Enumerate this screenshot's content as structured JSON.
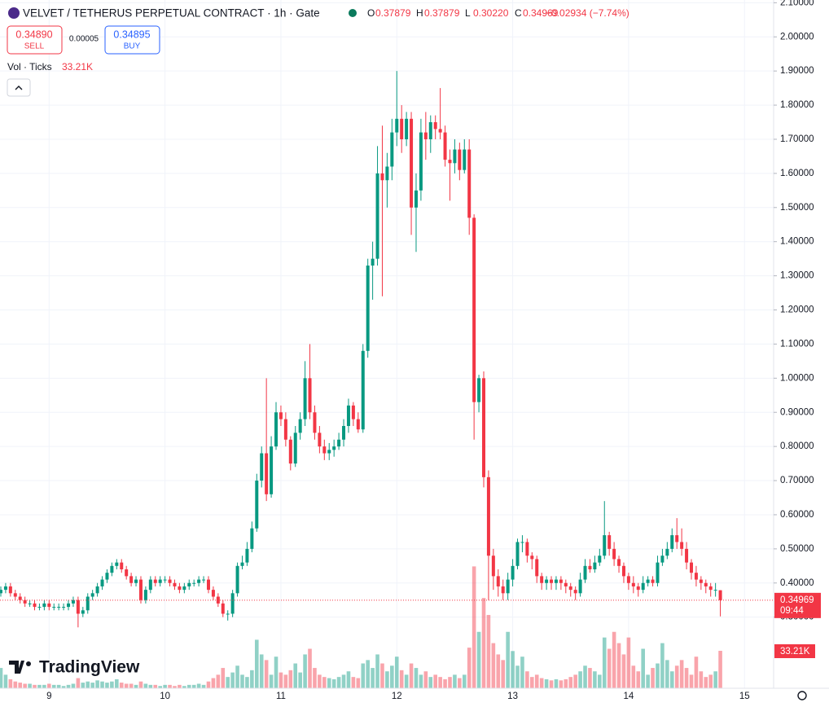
{
  "header": {
    "symbol": "VELVET / TETHERUS PERPETUAL CONTRACT · 1h · Gate",
    "ohlc": [
      [
        "O",
        "0.37879"
      ],
      [
        "H",
        "0.37879"
      ],
      [
        "L",
        "0.30220"
      ],
      [
        "C",
        "0.34969"
      ]
    ],
    "change": "−0.02934 (−7.74%)",
    "sell_price": "0.34890",
    "sell": "SELL",
    "spread": "0.00005",
    "buy_price": "0.34895",
    "buy": "BUY",
    "indicator": "Vol · Ticks",
    "indicator_value": "33.21K",
    "countdown": "09:44",
    "brand": "TradingView"
  },
  "chart_data": {
    "type": "candlestick",
    "up_color": "#089981",
    "down_color": "#f23645",
    "grid": true,
    "categories": [
      null,
      null,
      null,
      null,
      null,
      null,
      null,
      null,
      null,
      null,
      "9",
      null,
      null,
      null,
      null,
      null,
      null,
      null,
      null,
      null,
      null,
      null,
      null,
      null,
      null,
      null,
      null,
      null,
      null,
      null,
      null,
      null,
      null,
      null,
      "10",
      null,
      null,
      null,
      null,
      null,
      null,
      null,
      null,
      null,
      null,
      null,
      null,
      null,
      null,
      null,
      null,
      null,
      null,
      null,
      null,
      null,
      null,
      null,
      "11",
      null,
      null,
      null,
      null,
      null,
      null,
      null,
      null,
      null,
      null,
      null,
      null,
      null,
      null,
      null,
      null,
      null,
      null,
      null,
      null,
      null,
      null,
      null,
      "12",
      null,
      null,
      null,
      null,
      null,
      null,
      null,
      null,
      null,
      null,
      null,
      null,
      null,
      null,
      null,
      null,
      null,
      null,
      null,
      null,
      null,
      null,
      null,
      "13",
      null,
      null,
      null,
      null,
      null,
      null,
      null,
      null,
      null,
      null,
      null,
      null,
      null,
      null,
      null,
      null,
      null,
      null,
      null,
      null,
      null,
      null,
      null,
      "14",
      null,
      null,
      null,
      null,
      null,
      null,
      null,
      null,
      null,
      null,
      null,
      null,
      null,
      null,
      null,
      null,
      null,
      null,
      null,
      null,
      null,
      null,
      null,
      "15"
    ],
    "open": [
      0.37,
      0.38,
      0.39,
      0.37,
      0.36,
      0.35,
      0.34,
      0.34,
      0.33,
      0.33,
      0.34,
      0.33,
      0.33,
      0.33,
      0.33,
      0.34,
      0.35,
      0.31,
      0.32,
      0.36,
      0.37,
      0.39,
      0.41,
      0.43,
      0.45,
      0.46,
      0.44,
      0.42,
      0.4,
      0.41,
      0.35,
      0.38,
      0.41,
      0.4,
      0.41,
      0.41,
      0.4,
      0.39,
      0.38,
      0.39,
      0.4,
      0.4,
      0.41,
      0.41,
      0.38,
      0.36,
      0.34,
      0.31,
      0.31,
      0.37,
      0.45,
      0.46,
      0.5,
      0.56,
      0.7,
      0.78,
      0.66,
      0.8,
      0.9,
      0.88,
      0.82,
      0.75,
      0.84,
      0.88,
      1.0,
      0.9,
      0.84,
      0.8,
      0.78,
      0.79,
      0.8,
      0.82,
      0.86,
      0.92,
      0.88,
      0.85,
      1.08,
      1.33,
      1.35,
      1.6,
      1.58,
      1.62,
      1.72,
      1.76,
      1.7,
      1.76,
      1.5,
      1.55,
      1.72,
      1.7,
      1.75,
      1.73,
      1.72,
      1.64,
      1.63,
      1.67,
      1.61,
      1.67,
      1.47,
      0.93,
      1.0,
      0.71,
      0.48,
      0.42,
      0.39,
      0.37,
      0.41,
      0.45,
      0.52,
      0.52,
      0.48,
      0.47,
      0.42,
      0.4,
      0.41,
      0.4,
      0.41,
      0.4,
      0.39,
      0.38,
      0.37,
      0.41,
      0.45,
      0.44,
      0.46,
      0.48,
      0.54,
      0.5,
      0.47,
      0.45,
      0.42,
      0.4,
      0.39,
      0.38,
      0.4,
      0.41,
      0.4,
      0.46,
      0.48,
      0.5,
      0.54,
      0.52,
      0.5,
      0.46,
      0.43,
      0.41,
      0.4,
      0.39,
      0.38,
      0.37879,
      null,
      null,
      null,
      null,
      null
    ],
    "high": [
      0.39,
      0.4,
      0.4,
      0.38,
      0.37,
      0.36,
      0.35,
      0.35,
      0.34,
      0.35,
      0.35,
      0.34,
      0.34,
      0.34,
      0.35,
      0.36,
      0.36,
      0.33,
      0.37,
      0.38,
      0.4,
      0.42,
      0.44,
      0.46,
      0.47,
      0.47,
      0.45,
      0.43,
      0.42,
      0.42,
      0.39,
      0.42,
      0.42,
      0.42,
      0.42,
      0.42,
      0.41,
      0.4,
      0.4,
      0.41,
      0.41,
      0.42,
      0.42,
      0.42,
      0.39,
      0.37,
      0.35,
      0.32,
      0.38,
      0.46,
      0.48,
      0.52,
      0.58,
      0.72,
      0.8,
      1.0,
      0.83,
      0.93,
      0.92,
      0.9,
      0.83,
      0.86,
      0.9,
      1.05,
      1.1,
      0.92,
      0.86,
      0.82,
      0.81,
      0.82,
      0.84,
      0.88,
      0.94,
      0.93,
      0.9,
      1.1,
      1.35,
      1.4,
      1.68,
      1.74,
      1.66,
      1.76,
      1.9,
      1.8,
      1.78,
      1.78,
      1.6,
      1.76,
      1.78,
      1.77,
      1.77,
      1.85,
      1.74,
      1.67,
      1.7,
      1.69,
      1.7,
      1.7,
      1.48,
      1.01,
      1.02,
      0.73,
      0.5,
      0.44,
      0.41,
      0.43,
      0.47,
      0.53,
      0.54,
      0.53,
      0.49,
      0.48,
      0.43,
      0.42,
      0.42,
      0.42,
      0.42,
      0.41,
      0.4,
      0.39,
      0.43,
      0.47,
      0.47,
      0.48,
      0.5,
      0.64,
      0.55,
      0.52,
      0.48,
      0.46,
      0.43,
      0.42,
      0.4,
      0.42,
      0.42,
      0.42,
      0.48,
      0.5,
      0.52,
      0.56,
      0.59,
      0.56,
      0.52,
      0.47,
      0.45,
      0.42,
      0.41,
      0.4,
      0.4,
      0.37879,
      null,
      null,
      null,
      null,
      null
    ],
    "low": [
      0.36,
      0.37,
      0.36,
      0.35,
      0.34,
      0.33,
      0.33,
      0.32,
      0.32,
      0.32,
      0.32,
      0.32,
      0.32,
      0.32,
      0.32,
      0.33,
      0.27,
      0.3,
      0.31,
      0.35,
      0.36,
      0.38,
      0.4,
      0.42,
      0.44,
      0.43,
      0.41,
      0.39,
      0.39,
      0.34,
      0.34,
      0.37,
      0.39,
      0.39,
      0.4,
      0.39,
      0.38,
      0.37,
      0.37,
      0.38,
      0.39,
      0.39,
      0.4,
      0.37,
      0.35,
      0.33,
      0.3,
      0.29,
      0.3,
      0.36,
      0.44,
      0.45,
      0.49,
      0.55,
      0.68,
      0.64,
      0.65,
      0.79,
      0.86,
      0.8,
      0.73,
      0.74,
      0.82,
      0.86,
      0.88,
      0.82,
      0.78,
      0.76,
      0.76,
      0.77,
      0.79,
      0.8,
      0.84,
      0.86,
      0.84,
      0.84,
      1.06,
      1.23,
      1.33,
      1.24,
      1.5,
      1.58,
      1.68,
      1.66,
      1.68,
      1.42,
      1.37,
      1.52,
      1.64,
      1.66,
      1.7,
      1.7,
      1.62,
      1.52,
      1.6,
      1.58,
      1.6,
      1.42,
      0.82,
      0.9,
      0.68,
      0.35,
      0.38,
      0.36,
      0.35,
      0.35,
      0.39,
      0.44,
      0.49,
      0.46,
      0.44,
      0.4,
      0.38,
      0.38,
      0.38,
      0.38,
      0.38,
      0.37,
      0.36,
      0.35,
      0.36,
      0.4,
      0.43,
      0.43,
      0.45,
      0.47,
      0.48,
      0.45,
      0.43,
      0.4,
      0.38,
      0.37,
      0.36,
      0.37,
      0.39,
      0.39,
      0.39,
      0.45,
      0.47,
      0.49,
      0.5,
      0.48,
      0.44,
      0.41,
      0.39,
      0.38,
      0.37,
      0.36,
      0.36,
      0.3022,
      null,
      null,
      null,
      null,
      null
    ],
    "close": [
      0.38,
      0.39,
      0.37,
      0.36,
      0.35,
      0.34,
      0.34,
      0.33,
      0.33,
      0.34,
      0.33,
      0.33,
      0.33,
      0.33,
      0.34,
      0.35,
      0.31,
      0.32,
      0.36,
      0.37,
      0.39,
      0.41,
      0.43,
      0.45,
      0.46,
      0.44,
      0.42,
      0.4,
      0.41,
      0.35,
      0.38,
      0.41,
      0.4,
      0.41,
      0.41,
      0.4,
      0.39,
      0.38,
      0.39,
      0.4,
      0.4,
      0.41,
      0.41,
      0.38,
      0.36,
      0.34,
      0.31,
      0.31,
      0.37,
      0.45,
      0.46,
      0.5,
      0.56,
      0.7,
      0.78,
      0.66,
      0.8,
      0.9,
      0.88,
      0.82,
      0.75,
      0.84,
      0.88,
      1.0,
      0.9,
      0.84,
      0.8,
      0.78,
      0.79,
      0.8,
      0.82,
      0.86,
      0.92,
      0.88,
      0.85,
      1.08,
      1.33,
      1.35,
      1.6,
      1.58,
      1.62,
      1.72,
      1.76,
      1.7,
      1.76,
      1.5,
      1.55,
      1.72,
      1.7,
      1.75,
      1.73,
      1.72,
      1.64,
      1.63,
      1.67,
      1.61,
      1.67,
      1.47,
      0.93,
      1.0,
      0.71,
      0.48,
      0.42,
      0.39,
      0.37,
      0.41,
      0.45,
      0.52,
      0.52,
      0.48,
      0.47,
      0.42,
      0.4,
      0.41,
      0.4,
      0.41,
      0.4,
      0.39,
      0.38,
      0.37,
      0.41,
      0.45,
      0.44,
      0.46,
      0.48,
      0.54,
      0.5,
      0.47,
      0.45,
      0.42,
      0.4,
      0.39,
      0.38,
      0.4,
      0.41,
      0.4,
      0.46,
      0.48,
      0.5,
      0.54,
      0.52,
      0.5,
      0.46,
      0.43,
      0.41,
      0.4,
      0.39,
      0.38,
      0.38,
      0.34969,
      null,
      null,
      null,
      null,
      null
    ],
    "volume": [
      18000,
      12000,
      8000,
      6000,
      5000,
      4000,
      4000,
      3000,
      3000,
      3000,
      4000,
      3000,
      3000,
      2000,
      3000,
      4000,
      9000,
      5000,
      6000,
      5000,
      7000,
      6000,
      5000,
      6000,
      8000,
      5000,
      4000,
      4000,
      3000,
      6000,
      4000,
      3000,
      3000,
      2000,
      3000,
      3000,
      2000,
      3000,
      2000,
      3000,
      3000,
      4000,
      3000,
      6000,
      9000,
      12000,
      18000,
      10000,
      14000,
      20000,
      12000,
      10000,
      16000,
      43000,
      30000,
      25000,
      12000,
      28000,
      14000,
      12000,
      16000,
      22000,
      14000,
      30000,
      35000,
      18000,
      12000,
      10000,
      9000,
      8000,
      10000,
      12000,
      15000,
      10000,
      9000,
      22000,
      25000,
      18000,
      30000,
      22000,
      15000,
      20000,
      28000,
      16000,
      12000,
      22000,
      18000,
      12000,
      15000,
      10000,
      12000,
      10000,
      8000,
      10000,
      12000,
      9000,
      12000,
      36000,
      108000,
      50000,
      80000,
      65000,
      40000,
      30000,
      25000,
      50000,
      33000,
      20000,
      28000,
      15000,
      10000,
      12000,
      9000,
      8000,
      7000,
      8000,
      7000,
      8000,
      10000,
      12000,
      15000,
      20000,
      18000,
      15000,
      12000,
      45000,
      35000,
      50000,
      40000,
      30000,
      45000,
      20000,
      15000,
      35000,
      12000,
      18000,
      22000,
      40000,
      25000,
      15000,
      20000,
      25000,
      18000,
      12000,
      28000,
      15000,
      10000,
      12000,
      15000,
      33210,
      null,
      null,
      null,
      null,
      null
    ],
    "volume_last_label": "33.21K",
    "ylim": [
      0.0916,
      2.108
    ],
    "volume_ylim": [
      0,
      610000
    ],
    "yticks": [
      {
        "value": 0.3,
        "label": "0.30000"
      },
      {
        "value": 0.4,
        "label": "0.40000"
      },
      {
        "value": 0.5,
        "label": "0.50000"
      },
      {
        "value": 0.6,
        "label": "0.60000"
      },
      {
        "value": 0.7,
        "label": "0.70000"
      },
      {
        "value": 0.8,
        "label": "0.80000"
      },
      {
        "value": 0.9,
        "label": "0.90000"
      },
      {
        "value": 1.0,
        "label": "1.00000"
      },
      {
        "value": 1.1,
        "label": "1.10000"
      },
      {
        "value": 1.2,
        "label": "1.20000"
      },
      {
        "value": 1.3,
        "label": "1.30000"
      },
      {
        "value": 1.4,
        "label": "1.40000"
      },
      {
        "value": 1.5,
        "label": "1.50000"
      },
      {
        "value": 1.6,
        "label": "1.60000"
      },
      {
        "value": 1.7,
        "label": "1.70000"
      },
      {
        "value": 1.8,
        "label": "1.80000"
      },
      {
        "value": 1.9,
        "label": "1.90000"
      },
      {
        "value": 2.0,
        "label": "2.00000"
      },
      {
        "value": 2.1,
        "label": "2.10000"
      }
    ]
  }
}
